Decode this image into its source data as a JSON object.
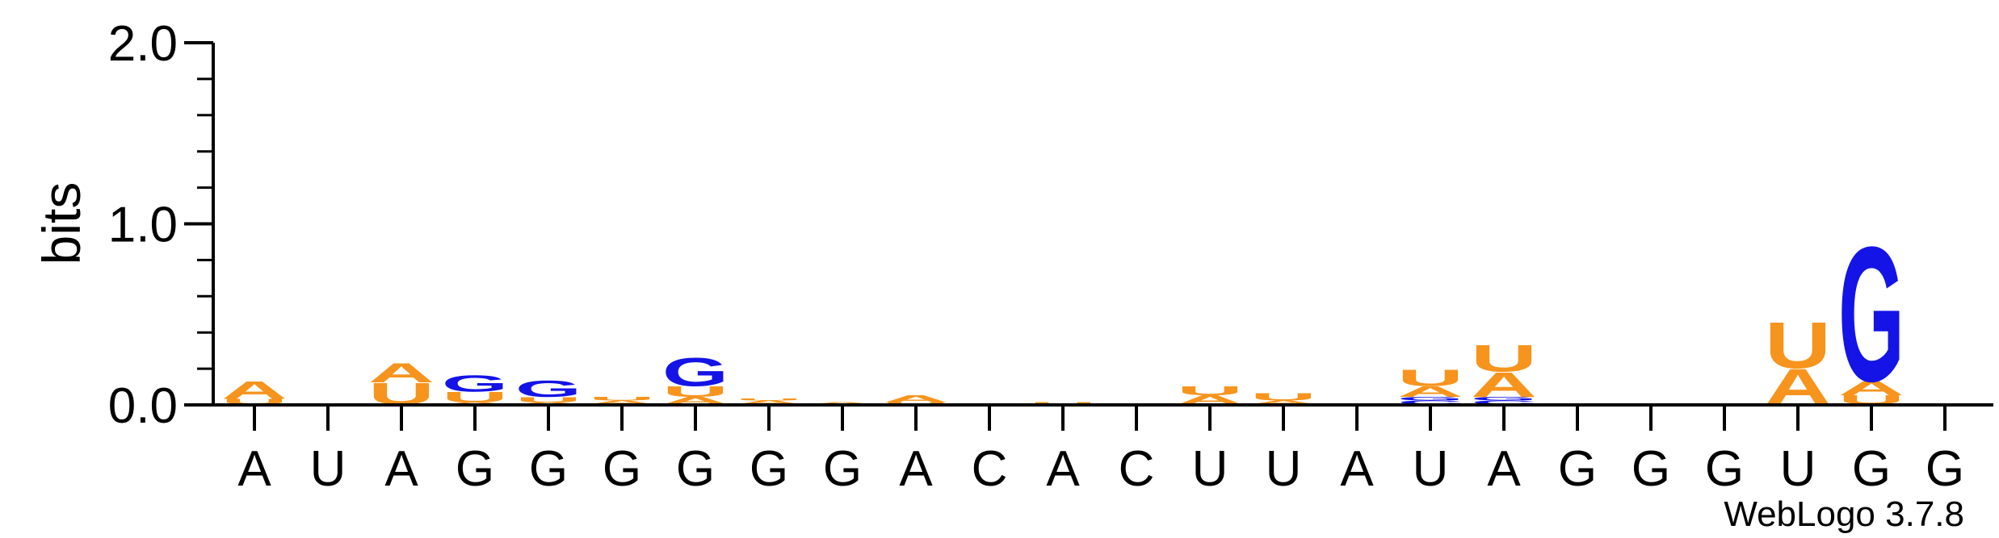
{
  "colors": {
    "A": "#f7941d",
    "U": "#f7941d",
    "G": "#1414e6",
    "C": "#1414e6"
  },
  "chart_data": {
    "type": "sequence-logo",
    "title": "",
    "xlabel": "",
    "ylabel": "bits",
    "ylim": [
      0,
      2
    ],
    "yticks": [
      "0.0",
      "1.0",
      "2.0"
    ],
    "credit": "WebLogo 3.7.8",
    "positions": [
      {
        "label": "A",
        "stack": [
          {
            "letter": "U",
            "bits": 0.03
          },
          {
            "letter": "A",
            "bits": 0.1
          }
        ]
      },
      {
        "label": "U",
        "stack": []
      },
      {
        "label": "A",
        "stack": [
          {
            "letter": "U",
            "bits": 0.12
          },
          {
            "letter": "A",
            "bits": 0.11
          }
        ]
      },
      {
        "label": "G",
        "stack": [
          {
            "letter": "A",
            "bits": 0.01
          },
          {
            "letter": "U",
            "bits": 0.06
          },
          {
            "letter": "G",
            "bits": 0.09
          }
        ]
      },
      {
        "label": "G",
        "stack": [
          {
            "letter": "A",
            "bits": 0.01
          },
          {
            "letter": "U",
            "bits": 0.03
          },
          {
            "letter": "G",
            "bits": 0.09
          }
        ]
      },
      {
        "label": "G",
        "stack": [
          {
            "letter": "A",
            "bits": 0.02
          },
          {
            "letter": "U",
            "bits": 0.02
          }
        ]
      },
      {
        "label": "G",
        "stack": [
          {
            "letter": "A",
            "bits": 0.04
          },
          {
            "letter": "U",
            "bits": 0.06
          },
          {
            "letter": "G",
            "bits": 0.16
          }
        ]
      },
      {
        "label": "G",
        "stack": [
          {
            "letter": "A",
            "bits": 0.02
          },
          {
            "letter": "U",
            "bits": 0.01
          }
        ]
      },
      {
        "label": "G",
        "stack": [
          {
            "letter": "A",
            "bits": 0.01
          }
        ]
      },
      {
        "label": "A",
        "stack": [
          {
            "letter": "U",
            "bits": 0.01
          },
          {
            "letter": "A",
            "bits": 0.04
          }
        ]
      },
      {
        "label": "C",
        "stack": []
      },
      {
        "label": "A",
        "stack": [
          {
            "letter": "U",
            "bits": 0.01
          }
        ]
      },
      {
        "label": "C",
        "stack": []
      },
      {
        "label": "U",
        "stack": [
          {
            "letter": "A",
            "bits": 0.05
          },
          {
            "letter": "U",
            "bits": 0.05
          }
        ]
      },
      {
        "label": "U",
        "stack": [
          {
            "letter": "A",
            "bits": 0.02
          },
          {
            "letter": "U",
            "bits": 0.04
          }
        ]
      },
      {
        "label": "A",
        "stack": []
      },
      {
        "label": "U",
        "stack": [
          {
            "letter": "C",
            "bits": 0.02
          },
          {
            "letter": "G",
            "bits": 0.02
          },
          {
            "letter": "A",
            "bits": 0.06
          },
          {
            "letter": "U",
            "bits": 0.09
          }
        ]
      },
      {
        "label": "A",
        "stack": [
          {
            "letter": "C",
            "bits": 0.02
          },
          {
            "letter": "G",
            "bits": 0.02
          },
          {
            "letter": "A",
            "bits": 0.14
          },
          {
            "letter": "U",
            "bits": 0.15
          }
        ]
      },
      {
        "label": "G",
        "stack": []
      },
      {
        "label": "G",
        "stack": []
      },
      {
        "label": "G",
        "stack": []
      },
      {
        "label": "U",
        "stack": [
          {
            "letter": "A",
            "bits": 0.2
          },
          {
            "letter": "U",
            "bits": 0.26
          }
        ]
      },
      {
        "label": "G",
        "stack": [
          {
            "letter": "U",
            "bits": 0.05
          },
          {
            "letter": "A",
            "bits": 0.08
          },
          {
            "letter": "G",
            "bits": 0.76
          }
        ]
      },
      {
        "label": "G",
        "stack": []
      }
    ]
  }
}
